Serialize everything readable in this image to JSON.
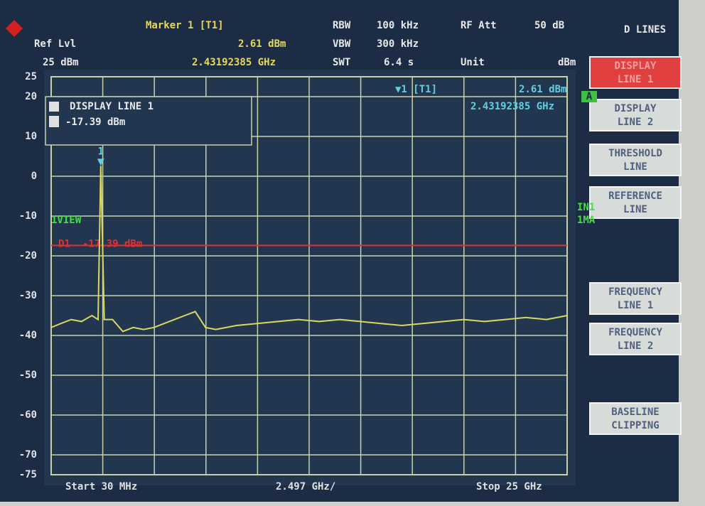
{
  "header": {
    "ref_lvl_label": "Ref Lvl",
    "ref_lvl": "25 dBm",
    "marker_title": "Marker 1 [T1]",
    "marker_level": "2.61 dBm",
    "marker_freq": "2.43192385 GHz",
    "rbw_label": "RBW",
    "rbw": "100 kHz",
    "vbw_label": "VBW",
    "vbw": "300 kHz",
    "swt_label": "SWT",
    "swt": "6.4 s",
    "rf_att_label": "RF Att",
    "rf_att": "50 dB",
    "unit_label": "Unit",
    "unit": "dBm"
  },
  "softkeys": {
    "title": "D LINES",
    "keys": [
      [
        "DISPLAY",
        "LINE 1"
      ],
      [
        "DISPLAY",
        "LINE 2"
      ],
      [
        "THRESHOLD",
        "LINE"
      ],
      [
        "REFERENCE",
        "LINE"
      ],
      [
        "FREQUENCY",
        "LINE 1"
      ],
      [
        "FREQUENCY",
        "LINE 2"
      ],
      [
        "BASELINE",
        "CLIPPING"
      ]
    ]
  },
  "chart_data": {
    "type": "line",
    "color": "#d8d860",
    "x": [
      0.03,
      0.5,
      1.0,
      1.5,
      2.0,
      2.3,
      2.43,
      2.6,
      3.0,
      3.5,
      4.0,
      4.5,
      5.0,
      5.5,
      6.0,
      6.5,
      7.0,
      7.5,
      8.0,
      9,
      10,
      11,
      12,
      13,
      14,
      15,
      16,
      17,
      18,
      19,
      20,
      21,
      22,
      23,
      24,
      25
    ],
    "values": [
      -38,
      -37,
      -36,
      -36.5,
      -35,
      -36,
      2.61,
      -36,
      -36,
      -39,
      -38,
      -38.5,
      -38,
      -37,
      -36,
      -35,
      -34,
      -38,
      -38.5,
      -37.5,
      -37,
      -36.5,
      -36,
      -36.5,
      -36,
      -36.5,
      -37,
      -37.5,
      -37,
      -36.5,
      -36,
      -36.5,
      -36,
      -35.5,
      -36,
      -35
    ],
    "xlim": [
      0.03,
      25
    ],
    "ylim": [
      -75,
      25
    ],
    "yticks": [
      25,
      20,
      10,
      0,
      -10,
      -20,
      -30,
      -40,
      -50,
      -60,
      -70,
      -75
    ],
    "grid": true,
    "start_label": "Start 30 MHz",
    "span_label": "2.497 GHz/",
    "stop_label": "Stop 25 GHz",
    "marker": {
      "label": "1",
      "x": 2.43192385,
      "y": 2.61
    },
    "marker_readout": {
      "label": "▼1 [T1]",
      "level": "2.61 dBm",
      "freq": "2.43192385 GHz"
    },
    "display_line": {
      "label": "D1",
      "value": -17.39,
      "value_label": "-17.39 dBm"
    },
    "info_box": {
      "title": "DISPLAY LINE 1",
      "value": "-17.39 dBm"
    },
    "view_label": "1VIEW",
    "badge": "A",
    "side_labels": [
      "IN1",
      "1MA"
    ]
  }
}
